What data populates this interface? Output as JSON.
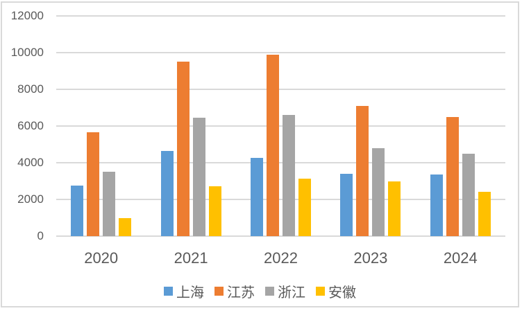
{
  "chart_data": {
    "type": "bar",
    "title": "",
    "xlabel": "",
    "ylabel": "",
    "categories": [
      "2020",
      "2021",
      "2022",
      "2023",
      "2024"
    ],
    "series": [
      {
        "key": "shanghai",
        "name": "上海",
        "color": "#5B9BD5",
        "values": [
          2750,
          4650,
          4250,
          3400,
          3350
        ]
      },
      {
        "key": "jiangsu",
        "name": "江苏",
        "color": "#ED7D31",
        "values": [
          5650,
          9500,
          9900,
          7100,
          6500
        ]
      },
      {
        "key": "zhejiang",
        "name": "浙江",
        "color": "#A5A5A5",
        "values": [
          3500,
          6450,
          6600,
          4800,
          4500
        ]
      },
      {
        "key": "anhui",
        "name": "安徽",
        "color": "#FFC000",
        "values": [
          1000,
          2700,
          3150,
          3000,
          2400
        ]
      }
    ],
    "ylim": [
      0,
      12000
    ],
    "y_ticks": [
      0,
      2000,
      4000,
      6000,
      8000,
      10000,
      12000
    ],
    "grid": true,
    "legend_position": "bottom",
    "colors": {
      "gridline": "#D9D9D9",
      "frame_border": "#D9D9D9",
      "axis_label": "#595959",
      "background": "#FFFFFF"
    }
  }
}
